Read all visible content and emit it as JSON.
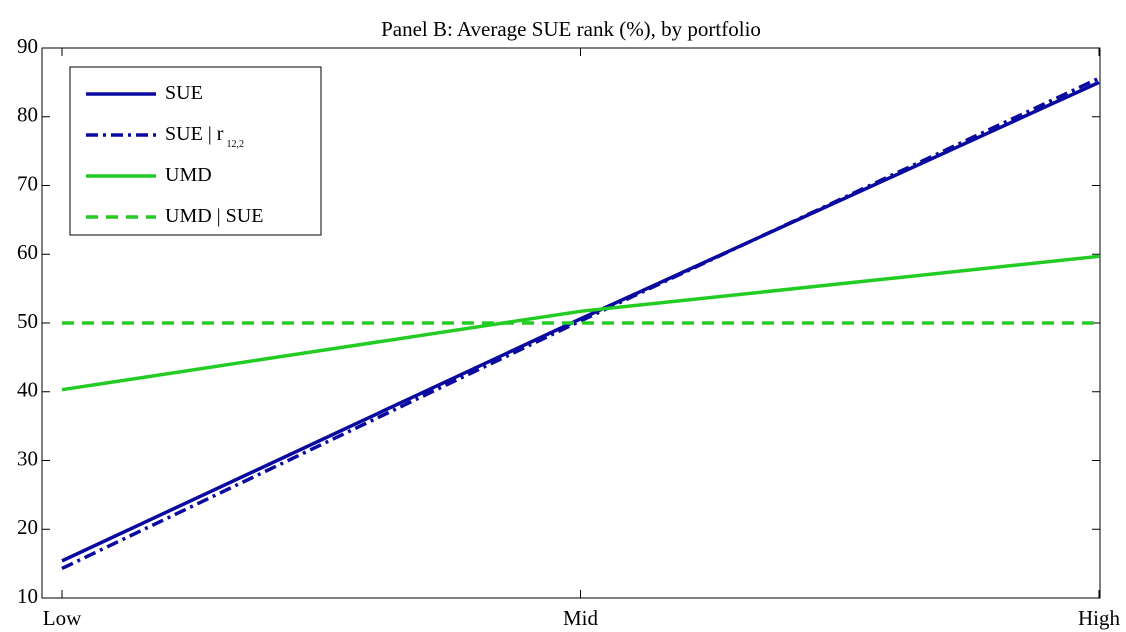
{
  "chart_data": {
    "type": "line",
    "title": "Panel B: Average SUE rank (%), by portfolio",
    "categories": [
      "Low",
      "Mid",
      "High"
    ],
    "series": [
      {
        "name": "SUE",
        "color": "#0a0aa0",
        "dash": "solid",
        "values": [
          15.4,
          50.6,
          85.0
        ]
      },
      {
        "name": "SUE | r",
        "name_subscript": "12,2",
        "color": "#0a0aa0",
        "dash": "dashdot",
        "values": [
          14.3,
          50.3,
          85.6
        ]
      },
      {
        "name": "UMD",
        "color": "#22cc22",
        "dash": "solid",
        "values": [
          40.3,
          51.7,
          59.7
        ]
      },
      {
        "name": "UMD | SUE",
        "color": "#22cc22",
        "dash": "dashed",
        "values": [
          50,
          50,
          50
        ]
      }
    ],
    "ylim": [
      10,
      90
    ],
    "yticks": [
      10,
      20,
      30,
      40,
      50,
      60,
      70,
      80,
      90
    ],
    "legend": "upper left",
    "grid": false
  }
}
